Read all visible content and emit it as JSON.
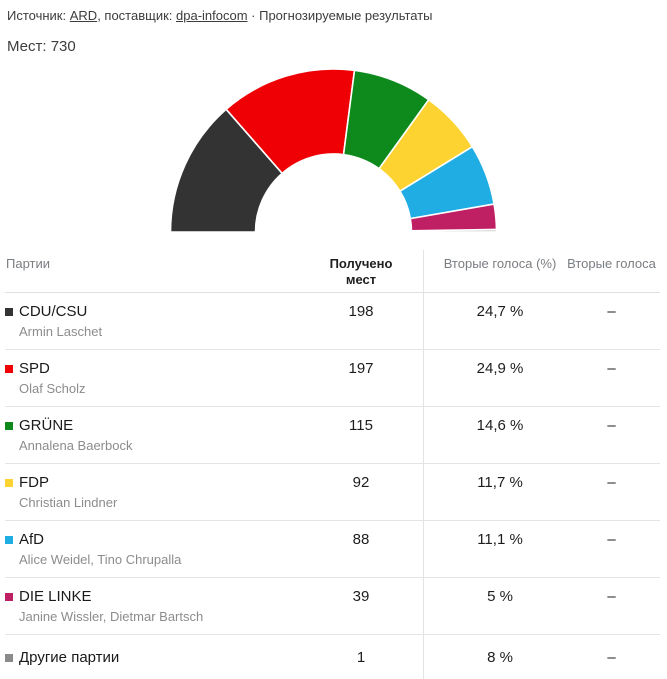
{
  "header": {
    "source_prefix": "Источник: ",
    "source_link": "ARD",
    "provider_prefix": ", поставщик: ",
    "provider_link": "dpa-infocom",
    "suffix": " · Прогнозируемые результаты",
    "seats_total_label": "Мест: 730"
  },
  "chart_data": {
    "type": "half-donut",
    "title": "Распределение мест (Мест: 730)",
    "total_seats": 730,
    "legend_position": "table-below",
    "series": [
      {
        "name": "CDU/CSU",
        "seats": 198,
        "color": "#333333"
      },
      {
        "name": "SPD",
        "seats": 197,
        "color": "#ee0005"
      },
      {
        "name": "GRÜNE",
        "seats": 115,
        "color": "#0e8a1d"
      },
      {
        "name": "FDP",
        "seats": 92,
        "color": "#fdd331"
      },
      {
        "name": "AfD",
        "seats": 88,
        "color": "#1fade4"
      },
      {
        "name": "DIE LINKE",
        "seats": 39,
        "color": "#bf2064"
      },
      {
        "name": "Другие партии",
        "seats": 1,
        "color": "#8a8a8a",
        "chart_color": "#c9c9ca"
      }
    ]
  },
  "table": {
    "columns": {
      "party": "Партии",
      "seats": "Получено мест",
      "second_votes_pct": "Вторые голоса (%)",
      "second_votes": "Вторые голоса"
    },
    "rows": [
      {
        "party": "CDU/CSU",
        "subtitle": "Armin Laschet",
        "color": "#333333",
        "seats": "198",
        "second_votes_pct": "24,7 %",
        "second_votes": "–"
      },
      {
        "party": "SPD",
        "subtitle": "Olaf Scholz",
        "color": "#ee0005",
        "seats": "197",
        "second_votes_pct": "24,9 %",
        "second_votes": "–"
      },
      {
        "party": "GRÜNE",
        "subtitle": "Annalena Baerbock",
        "color": "#0e8a1d",
        "seats": "115",
        "second_votes_pct": "14,6 %",
        "second_votes": "–"
      },
      {
        "party": "FDP",
        "subtitle": "Christian Lindner",
        "color": "#fdd331",
        "seats": "92",
        "second_votes_pct": "11,7 %",
        "second_votes": "–"
      },
      {
        "party": "AfD",
        "subtitle": "Alice Weidel, Tino Chrupalla",
        "color": "#1fade4",
        "seats": "88",
        "second_votes_pct": "11,1 %",
        "second_votes": "–"
      },
      {
        "party": "DIE LINKE",
        "subtitle": "Janine Wissler, Dietmar Bartsch",
        "color": "#bf2064",
        "seats": "39",
        "second_votes_pct": "5 %",
        "second_votes": "–"
      },
      {
        "party": "Другие партии",
        "subtitle": "",
        "color": "#8a8a8a",
        "seats": "1",
        "second_votes_pct": "8 %",
        "second_votes": "–"
      }
    ]
  }
}
